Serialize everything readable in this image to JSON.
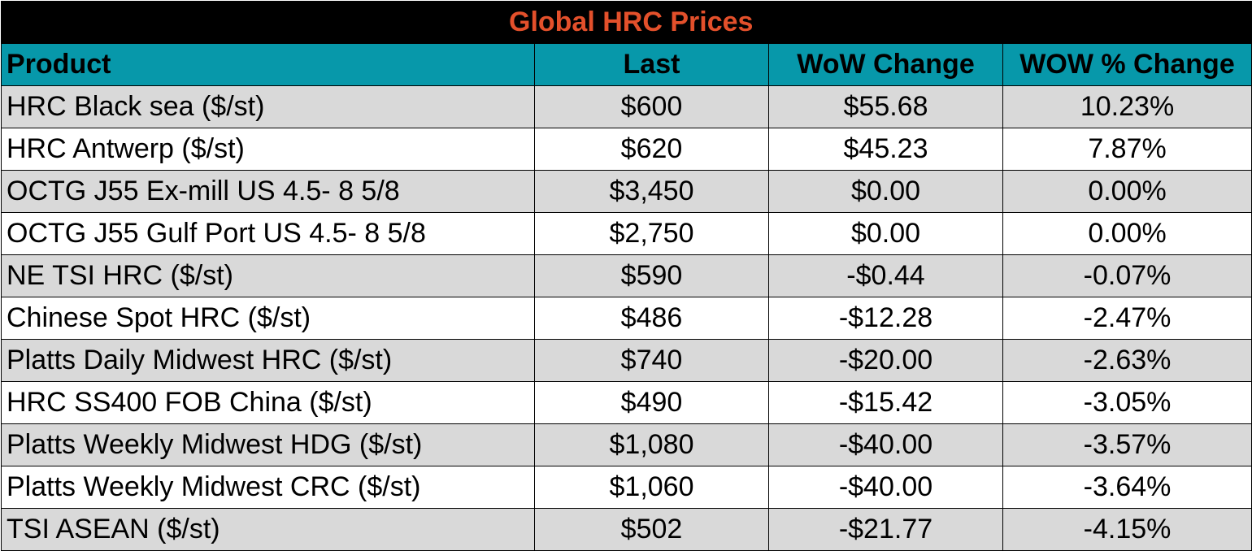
{
  "table": {
    "title": "Global HRC Prices",
    "headers": [
      "Product",
      "Last",
      "WoW Change",
      "WOW % Change"
    ],
    "rows": [
      {
        "product": "HRC Black sea ($/st)",
        "last": "$600",
        "wow_change": "$55.68",
        "wow_pct": "10.23%"
      },
      {
        "product": "HRC Antwerp ($/st)",
        "last": "$620",
        "wow_change": "$45.23",
        "wow_pct": "7.87%"
      },
      {
        "product": "OCTG J55 Ex-mill US 4.5- 8 5/8",
        "last": "$3,450",
        "wow_change": "$0.00",
        "wow_pct": "0.00%"
      },
      {
        "product": "OCTG J55 Gulf Port US 4.5- 8 5/8",
        "last": "$2,750",
        "wow_change": "$0.00",
        "wow_pct": "0.00%"
      },
      {
        "product": "NE TSI HRC ($/st)",
        "last": "$590",
        "wow_change": "-$0.44",
        "wow_pct": "-0.07%"
      },
      {
        "product": "Chinese Spot HRC ($/st)",
        "last": "$486",
        "wow_change": "-$12.28",
        "wow_pct": "-2.47%"
      },
      {
        "product": "Platts Daily Midwest HRC ($/st)",
        "last": "$740",
        "wow_change": "-$20.00",
        "wow_pct": "-2.63%"
      },
      {
        "product": "HRC SS400 FOB China ($/st)",
        "last": "$490",
        "wow_change": "-$15.42",
        "wow_pct": "-3.05%"
      },
      {
        "product": "Platts Weekly Midwest HDG ($/st)",
        "last": "$1,080",
        "wow_change": "-$40.00",
        "wow_pct": "-3.57%"
      },
      {
        "product": "Platts Weekly Midwest CRC ($/st)",
        "last": "$1,060",
        "wow_change": "-$40.00",
        "wow_pct": "-3.64%"
      },
      {
        "product": "TSI ASEAN ($/st)",
        "last": "$502",
        "wow_change": "-$21.77",
        "wow_pct": "-4.15%"
      }
    ]
  },
  "colors": {
    "title_bg": "#000000",
    "title_text": "#e3502b",
    "header_bg": "#0798aa",
    "row_alt_bg": "#d9d9d9",
    "row_bg": "#ffffff"
  }
}
